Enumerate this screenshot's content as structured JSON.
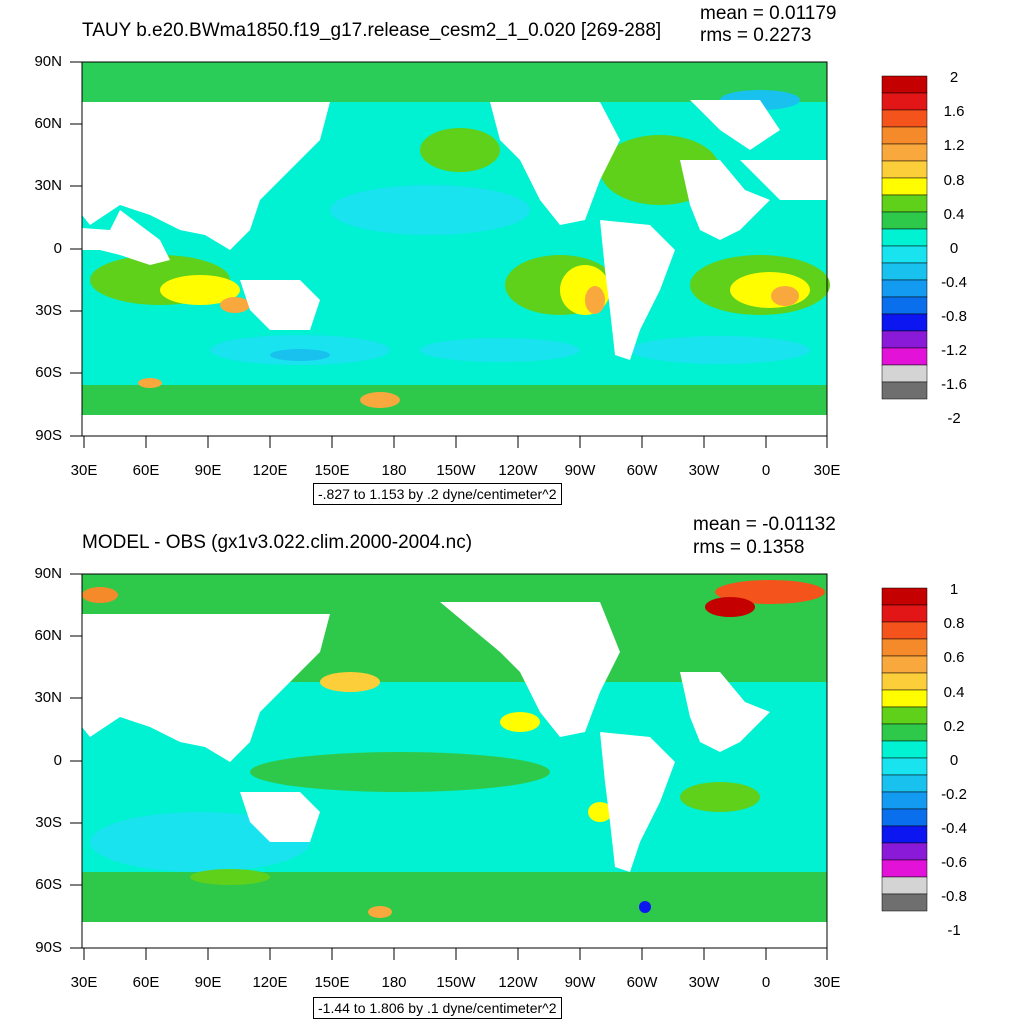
{
  "panels": [
    {
      "title": "TAUY b.e20.BWma1850.f19_g17.release_cesm2_1_0.020 [269-288]",
      "mean": "mean = 0.01179",
      "rms": "rms = 0.2273",
      "range": "-.827 to 1.153 by .2 dyne/centimeter^2",
      "colorbar": {
        "labels": [
          "2",
          "1.6",
          "1.2",
          "0.8",
          "0.4",
          "0",
          "-0.4",
          "-0.8",
          "-1.2",
          "-1.6",
          "-2"
        ],
        "colors": [
          "#c40000",
          "#e21616",
          "#f4541c",
          "#f58a2a",
          "#f9a83e",
          "#fccf3a",
          "#fffd00",
          "#5fd11b",
          "#2ec94a",
          "#00f2d2",
          "#19e3ee",
          "#19c1ef",
          "#129bf0",
          "#0a6fec",
          "#0c16f0",
          "#8a1ad8",
          "#e212d8",
          "#d4d4d4",
          "#6f6f6f"
        ]
      },
      "lat_labels": [
        "90N",
        "60N",
        "30N",
        "0",
        "30S",
        "60S",
        "90S"
      ],
      "lon_labels": [
        "30E",
        "60E",
        "90E",
        "120E",
        "150E",
        "180",
        "150W",
        "120W",
        "90W",
        "60W",
        "30W",
        "0",
        "30E"
      ]
    },
    {
      "title": "MODEL - OBS (gx1v3.022.clim.2000-2004.nc)",
      "mean": "mean = -0.01132",
      "rms": "rms = 0.1358",
      "range": "-1.44 to 1.806 by .1 dyne/centimeter^2",
      "colorbar": {
        "labels": [
          "1",
          "0.8",
          "0.6",
          "0.4",
          "0.2",
          "0",
          "-0.2",
          "-0.4",
          "-0.6",
          "-0.8",
          "-1"
        ],
        "colors": [
          "#c40000",
          "#e21616",
          "#f4541c",
          "#f58a2a",
          "#f9a83e",
          "#fccf3a",
          "#fffd00",
          "#5fd11b",
          "#2ec94a",
          "#00f2d2",
          "#19e3ee",
          "#19c1ef",
          "#129bf0",
          "#0a6fec",
          "#0c16f0",
          "#8a1ad8",
          "#e212d8",
          "#d4d4d4",
          "#6f6f6f"
        ]
      },
      "lat_labels": [
        "90N",
        "60N",
        "30N",
        "0",
        "30S",
        "60S",
        "90S"
      ],
      "lon_labels": [
        "30E",
        "60E",
        "90E",
        "120E",
        "150E",
        "180",
        "150W",
        "120W",
        "90W",
        "60W",
        "30W",
        "0",
        "30E"
      ]
    }
  ]
}
